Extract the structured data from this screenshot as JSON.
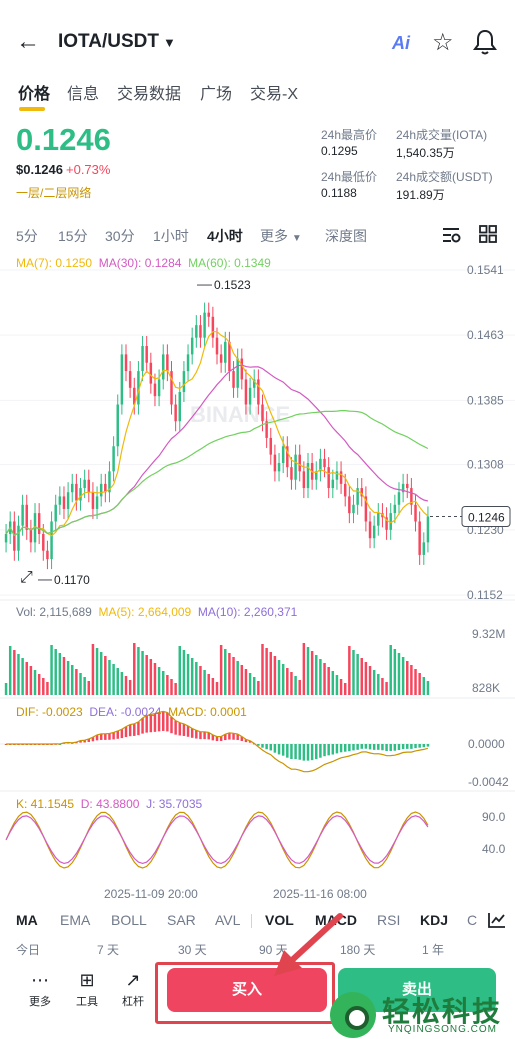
{
  "header": {
    "pair": "IOTA/USDT",
    "ai_label": "Ai"
  },
  "tabs": [
    "价格",
    "信息",
    "交易数据",
    "广场",
    "交易-X"
  ],
  "price": {
    "last": "0.1246",
    "usd": "$0.1246",
    "change": "+0.73%",
    "network": "一层/二层网络"
  },
  "stats": {
    "high_label": "24h最高价",
    "high": "0.1295",
    "low_label": "24h最低价",
    "low": "0.1188",
    "vol_label": "24h成交量(IOTA)",
    "vol": "1,540.35万",
    "amt_label": "24h成交额(USDT)",
    "amt": "191.89万"
  },
  "intervals": [
    "5分",
    "15分",
    "30分",
    "1小时",
    "4小时",
    "更多",
    "深度图"
  ],
  "ma_legend": {
    "ma7": "MA(7): 0.1250",
    "ma30": "MA(30): 0.1284",
    "ma60": "MA(60): 0.1349"
  },
  "vol_legend": {
    "vol": "Vol: 2,115,689",
    "ma5": "MA(5): 2,664,009",
    "ma10": "MA(10): 2,260,371"
  },
  "macd_legend": {
    "dif": "DIF: -0.0023",
    "dea": "DEA: -0.0024",
    "macd": "MACD: 0.0001"
  },
  "kdj_legend": {
    "k": "K: 41.1545",
    "d": "D: 43.8800",
    "j": "J: 35.7035"
  },
  "chart_data": {
    "type": "candlestick",
    "price_axis": [
      "0.1541",
      "0.1463",
      "0.1385",
      "0.1308",
      "0.1230",
      "0.1152"
    ],
    "current_price_label": "0.1246",
    "high_marker": "0.1523",
    "low_marker": "0.1170",
    "volume_axis": [
      "9.32M",
      "828K"
    ],
    "macd_axis": [
      "0.0000",
      "-0.0042"
    ],
    "kdj_axis": [
      "90.0",
      "40.0"
    ],
    "x_labels": [
      "2025-11-09 20:00",
      "2025-11-16 08:00"
    ],
    "watermark": "BINANCE",
    "closes": [
      0.1225,
      0.124,
      0.1205,
      0.1235,
      0.126,
      0.123,
      0.1215,
      0.125,
      0.1225,
      0.1205,
      0.1195,
      0.124,
      0.126,
      0.127,
      0.1255,
      0.1275,
      0.1285,
      0.1265,
      0.128,
      0.129,
      0.1275,
      0.1255,
      0.127,
      0.1285,
      0.1275,
      0.13,
      0.133,
      0.138,
      0.144,
      0.142,
      0.14,
      0.138,
      0.142,
      0.145,
      0.143,
      0.1405,
      0.139,
      0.141,
      0.144,
      0.142,
      0.138,
      0.136,
      0.1395,
      0.142,
      0.144,
      0.146,
      0.1475,
      0.146,
      0.149,
      0.1485,
      0.146,
      0.144,
      0.143,
      0.1455,
      0.142,
      0.14,
      0.1435,
      0.141,
      0.138,
      0.14,
      0.141,
      0.138,
      0.136,
      0.134,
      0.132,
      0.13,
      0.131,
      0.133,
      0.1305,
      0.129,
      0.132,
      0.13,
      0.128,
      0.131,
      0.129,
      0.13,
      0.1315,
      0.1305,
      0.128,
      0.129,
      0.13,
      0.1285,
      0.127,
      0.125,
      0.126,
      0.128,
      0.127,
      0.124,
      0.122,
      0.1235,
      0.125,
      0.1245,
      0.123,
      0.125,
      0.126,
      0.1275,
      0.1285,
      0.128,
      0.126,
      0.124,
      0.12,
      0.1215,
      0.1246
    ]
  },
  "indicators": [
    "MA",
    "EMA",
    "BOLL",
    "SAR",
    "AVL",
    "VOL",
    "MACD",
    "RSI",
    "KDJ",
    "C"
  ],
  "ranges": [
    "今日",
    "7 天",
    "30 天",
    "90 天",
    "180 天",
    "1 年"
  ],
  "bottom": {
    "more": "更多",
    "tools": "工具",
    "leverage": "杠杆",
    "buy": "买入",
    "sell": "卖出"
  },
  "watermark_site": {
    "title": "轻松科技",
    "url": "YNQINGSONG.COM"
  },
  "colors": {
    "up": "#2ebd85",
    "down": "#f6465d",
    "ma7": "#f0b90b",
    "ma30": "#d35ac2",
    "ma60": "#71d15f",
    "accent": "#f0b90b"
  }
}
